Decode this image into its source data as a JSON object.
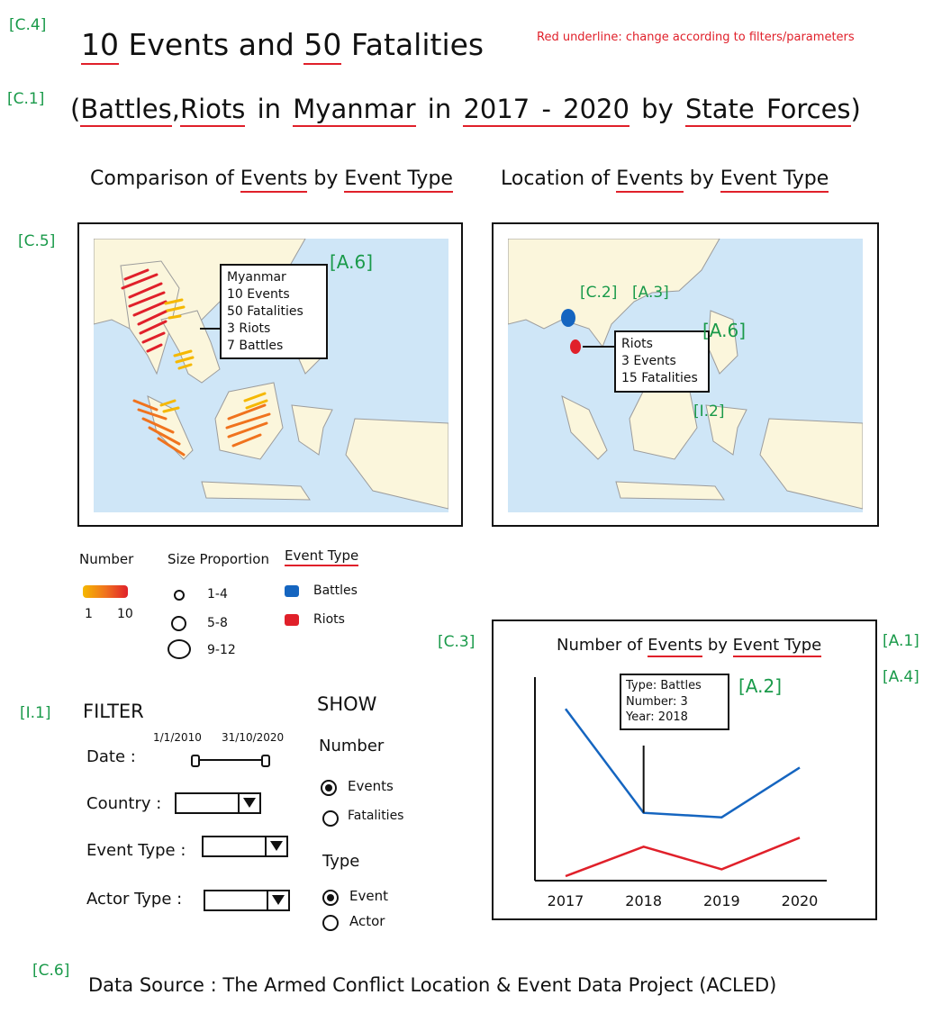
{
  "tags": {
    "c4": "[C.4]",
    "c1": "[C.1]",
    "c5": "[C.5]",
    "a6_left": "[A.6]",
    "c2": "[C.2]",
    "a3": "[A.3]",
    "a6_right": "[A.6]",
    "i2": "[I.2]",
    "c3": "[C.3]",
    "a1": "[A.1]",
    "a4": "[A.4]",
    "a2": "[A.2]",
    "i1": "[I.1]",
    "c6": "[C.6]"
  },
  "note": "Red underline: change according to filters/parameters",
  "headline": {
    "count_events": "10",
    "events_word": "Events",
    "and_word": "and",
    "count_fatalities": "50",
    "fatalities_word": "Fatalities"
  },
  "subtitle": {
    "open": "(",
    "type1": "Battles",
    "comma": ",",
    "type2": "Riots",
    "in1": "in",
    "country": "Myanmar",
    "in2": "in",
    "years": "2017 - 2020",
    "by": "by",
    "actor": "State Forces",
    "close": ")"
  },
  "left_map": {
    "title_pre": "Comparison of",
    "title_metric": "Events",
    "title_by": "by",
    "title_dim": "Event Type",
    "tooltip": [
      "Myanmar",
      "10 Events",
      "50 Fatalities",
      "3 Riots",
      "7 Battles"
    ]
  },
  "right_map": {
    "title_pre": "Location of",
    "title_metric": "Events",
    "title_by": "by",
    "title_dim": "Event Type",
    "tooltip": [
      "Riots",
      "3 Events",
      "15 Fatalities"
    ]
  },
  "legend": {
    "number_title": "Number",
    "number_min": "1",
    "number_max": "10",
    "size_title": "Size Proportion",
    "sizes": [
      "1-4",
      "5-8",
      "9-12"
    ],
    "type_title": "Event Type",
    "types": [
      "Battles",
      "Riots"
    ],
    "colors": {
      "battles": "#1565c0",
      "riots": "#e0202a",
      "low": "#f5b800",
      "high": "#e0202a"
    }
  },
  "filter": {
    "title": "FILTER",
    "date_label": "Date :",
    "date_start": "1/1/2010",
    "date_end": "31/10/2020",
    "country_label": "Country :",
    "event_type_label": "Event Type :",
    "actor_type_label": "Actor Type :"
  },
  "show": {
    "title": "SHOW",
    "number_title": "Number",
    "number_options": [
      "Events",
      "Fatalities"
    ],
    "number_selected": "Events",
    "type_title": "Type",
    "type_options": [
      "Event",
      "Actor"
    ],
    "type_selected": "Event"
  },
  "line_chart": {
    "title_pre": "Number of",
    "title_metric": "Events",
    "title_by": "by",
    "title_dim": "Event Type",
    "tooltip": [
      "Type: Battles",
      "Number: 3",
      "Year: 2018"
    ]
  },
  "chart_data": {
    "type": "line",
    "title": "Number of Events by Event Type",
    "x": [
      "2017",
      "2018",
      "2019",
      "2020"
    ],
    "series": [
      {
        "color": "#1565c0",
        "values": [
          7.6,
          3.0,
          2.8,
          5.0
        ]
      },
      {
        "color": "#e0202a",
        "values": [
          0.2,
          1.5,
          0.5,
          1.9
        ]
      }
    ],
    "ylim": [
      0,
      9
    ],
    "grid": false
  },
  "footer": {
    "label": "Data Source :",
    "value": "The Armed Conflict Location & Event Data Project (ACLED)"
  }
}
